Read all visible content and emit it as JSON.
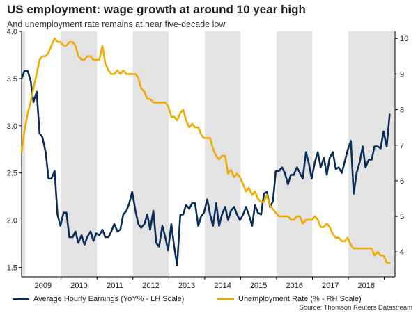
{
  "title": "US employment: wage growth at around 10 year high",
  "subtitle": "And unemployment rate remains at near five-decade low",
  "source": "Source: Thomson Reuters Datastream",
  "colors": {
    "earnings": "#0b2d5b",
    "unemployment": "#f2a900",
    "shade": "#e3e3e3",
    "axis": "#000000"
  },
  "legend": {
    "earnings": "Average Hourly Earnings (YoY% - LH Scale)",
    "unemployment": "Unemployment Rate (% - RH Scale)"
  },
  "chart_data": {
    "type": "line",
    "title": "US employment: wage growth at around 10 year high",
    "subtitle": "And unemployment rate remains at near five-decade low",
    "x_range": [
      2008.5,
      2018.9
    ],
    "year_labels": [
      "2009",
      "2010",
      "2011",
      "2012",
      "2013",
      "2014",
      "2015",
      "2016",
      "2017",
      "2018"
    ],
    "shaded_periods": [
      [
        2008.5,
        2008.6
      ],
      [
        2009.6,
        2010.6
      ],
      [
        2011.6,
        2012.6
      ],
      [
        2013.6,
        2014.6
      ],
      [
        2015.6,
        2016.6
      ],
      [
        2017.6,
        2018.9
      ]
    ],
    "y_left": {
      "min": 1.4,
      "max": 4.0,
      "ticks": [
        "1.5",
        "2.0",
        "2.5",
        "3.0",
        "3.5",
        "4.0"
      ],
      "label": ""
    },
    "y_right": {
      "min": 3.3,
      "max": 10.2,
      "ticks": [
        "4",
        "5",
        "6",
        "7",
        "8",
        "9",
        "10"
      ],
      "label": ""
    },
    "series": [
      {
        "name": "Average Hourly Earnings (YoY% - LH Scale)",
        "axis": "left",
        "color": "#0b2d5b",
        "points": [
          [
            2008.5,
            3.5
          ],
          [
            2008.58,
            3.58
          ],
          [
            2008.67,
            3.58
          ],
          [
            2008.75,
            3.48
          ],
          [
            2008.83,
            3.25
          ],
          [
            2008.92,
            3.36
          ],
          [
            2009.0,
            2.92
          ],
          [
            2009.08,
            2.88
          ],
          [
            2009.17,
            2.72
          ],
          [
            2009.25,
            2.44
          ],
          [
            2009.33,
            2.44
          ],
          [
            2009.42,
            2.52
          ],
          [
            2009.5,
            2.06
          ],
          [
            2009.58,
            1.94
          ],
          [
            2009.67,
            2.08
          ],
          [
            2009.75,
            2.08
          ],
          [
            2009.83,
            1.82
          ],
          [
            2009.92,
            1.82
          ],
          [
            2010.0,
            1.88
          ],
          [
            2010.08,
            1.76
          ],
          [
            2010.17,
            1.84
          ],
          [
            2010.25,
            1.74
          ],
          [
            2010.33,
            1.82
          ],
          [
            2010.42,
            1.88
          ],
          [
            2010.5,
            1.78
          ],
          [
            2010.58,
            1.86
          ],
          [
            2010.67,
            1.84
          ],
          [
            2010.75,
            1.9
          ],
          [
            2010.83,
            1.82
          ],
          [
            2010.92,
            1.82
          ],
          [
            2011.0,
            1.88
          ],
          [
            2011.08,
            1.96
          ],
          [
            2011.17,
            1.88
          ],
          [
            2011.25,
            1.9
          ],
          [
            2011.33,
            2.06
          ],
          [
            2011.42,
            2.1
          ],
          [
            2011.5,
            2.18
          ],
          [
            2011.58,
            2.3
          ],
          [
            2011.67,
            2.1
          ],
          [
            2011.75,
            1.96
          ],
          [
            2011.83,
            1.92
          ],
          [
            2011.92,
            1.96
          ],
          [
            2012.0,
            2.06
          ],
          [
            2012.08,
            1.9
          ],
          [
            2012.17,
            2.1
          ],
          [
            2012.25,
            1.76
          ],
          [
            2012.33,
            1.72
          ],
          [
            2012.42,
            1.94
          ],
          [
            2012.5,
            1.82
          ],
          [
            2012.58,
            1.68
          ],
          [
            2012.67,
            1.96
          ],
          [
            2012.75,
            1.72
          ],
          [
            2012.83,
            1.52
          ],
          [
            2012.92,
            2.06
          ],
          [
            2013.0,
            2.06
          ],
          [
            2013.08,
            2.16
          ],
          [
            2013.17,
            2.12
          ],
          [
            2013.25,
            2.18
          ],
          [
            2013.33,
            2.18
          ],
          [
            2013.42,
            1.94
          ],
          [
            2013.5,
            2.04
          ],
          [
            2013.58,
            2.08
          ],
          [
            2013.67,
            2.22
          ],
          [
            2013.75,
            2.06
          ],
          [
            2013.83,
            1.94
          ],
          [
            2013.92,
            2.18
          ],
          [
            2014.0,
            1.94
          ],
          [
            2014.08,
            2.06
          ],
          [
            2014.17,
            2.14
          ],
          [
            2014.25,
            2.0
          ],
          [
            2014.33,
            2.1
          ],
          [
            2014.42,
            2.14
          ],
          [
            2014.5,
            2.06
          ],
          [
            2014.58,
            2.0
          ],
          [
            2014.67,
            2.06
          ],
          [
            2014.75,
            2.14
          ],
          [
            2014.83,
            2.06
          ],
          [
            2014.92,
            1.94
          ],
          [
            2015.0,
            2.16
          ],
          [
            2015.08,
            2.08
          ],
          [
            2015.17,
            2.06
          ],
          [
            2015.25,
            2.28
          ],
          [
            2015.33,
            2.3
          ],
          [
            2015.42,
            2.14
          ],
          [
            2015.5,
            2.2
          ],
          [
            2015.58,
            2.52
          ],
          [
            2015.67,
            2.52
          ],
          [
            2015.75,
            2.56
          ],
          [
            2015.83,
            2.5
          ],
          [
            2015.92,
            2.38
          ],
          [
            2016.0,
            2.48
          ],
          [
            2016.08,
            2.48
          ],
          [
            2016.17,
            2.56
          ],
          [
            2016.25,
            2.5
          ],
          [
            2016.33,
            2.44
          ],
          [
            2016.42,
            2.72
          ],
          [
            2016.5,
            2.6
          ],
          [
            2016.58,
            2.44
          ],
          [
            2016.67,
            2.62
          ],
          [
            2016.75,
            2.72
          ],
          [
            2016.83,
            2.56
          ],
          [
            2016.92,
            2.66
          ],
          [
            2017.0,
            2.48
          ],
          [
            2017.08,
            2.66
          ],
          [
            2017.17,
            2.72
          ],
          [
            2017.25,
            2.54
          ],
          [
            2017.33,
            2.56
          ],
          [
            2017.42,
            2.5
          ],
          [
            2017.5,
            2.62
          ],
          [
            2017.58,
            2.74
          ],
          [
            2017.67,
            2.84
          ],
          [
            2017.75,
            2.28
          ],
          [
            2017.83,
            2.5
          ],
          [
            2017.92,
            2.62
          ],
          [
            2018.0,
            2.78
          ],
          [
            2018.08,
            2.56
          ],
          [
            2018.17,
            2.64
          ],
          [
            2018.25,
            2.64
          ],
          [
            2018.33,
            2.78
          ],
          [
            2018.42,
            2.78
          ],
          [
            2018.5,
            2.76
          ],
          [
            2018.58,
            2.94
          ],
          [
            2018.67,
            2.78
          ],
          [
            2018.75,
            3.12
          ]
        ]
      },
      {
        "name": "Unemployment Rate (% - RH Scale)",
        "axis": "right",
        "color": "#f2a900",
        "points": [
          [
            2008.5,
            6.8
          ],
          [
            2008.58,
            7.4
          ],
          [
            2008.67,
            7.9
          ],
          [
            2008.75,
            8.2
          ],
          [
            2008.83,
            8.6
          ],
          [
            2008.92,
            9.0
          ],
          [
            2009.0,
            9.4
          ],
          [
            2009.08,
            9.5
          ],
          [
            2009.17,
            9.5
          ],
          [
            2009.25,
            9.6
          ],
          [
            2009.33,
            9.8
          ],
          [
            2009.42,
            10.0
          ],
          [
            2009.5,
            9.9
          ],
          [
            2009.58,
            9.9
          ],
          [
            2009.67,
            9.8
          ],
          [
            2009.75,
            9.8
          ],
          [
            2009.83,
            9.9
          ],
          [
            2009.92,
            9.9
          ],
          [
            2010.0,
            9.8
          ],
          [
            2010.08,
            9.5
          ],
          [
            2010.17,
            9.4
          ],
          [
            2010.25,
            9.4
          ],
          [
            2010.33,
            9.5
          ],
          [
            2010.42,
            9.5
          ],
          [
            2010.5,
            9.4
          ],
          [
            2010.58,
            9.4
          ],
          [
            2010.67,
            9.4
          ],
          [
            2010.75,
            9.8
          ],
          [
            2010.83,
            9.3
          ],
          [
            2010.92,
            9.1
          ],
          [
            2011.0,
            9.0
          ],
          [
            2011.08,
            9.0
          ],
          [
            2011.17,
            9.1
          ],
          [
            2011.25,
            9.0
          ],
          [
            2011.33,
            9.1
          ],
          [
            2011.42,
            9.0
          ],
          [
            2011.5,
            9.0
          ],
          [
            2011.58,
            9.0
          ],
          [
            2011.67,
            9.0
          ],
          [
            2011.75,
            8.9
          ],
          [
            2011.83,
            8.6
          ],
          [
            2011.92,
            8.5
          ],
          [
            2012.0,
            8.3
          ],
          [
            2012.08,
            8.3
          ],
          [
            2012.17,
            8.2
          ],
          [
            2012.25,
            8.2
          ],
          [
            2012.33,
            8.2
          ],
          [
            2012.42,
            8.2
          ],
          [
            2012.5,
            8.2
          ],
          [
            2012.58,
            8.1
          ],
          [
            2012.67,
            7.8
          ],
          [
            2012.75,
            7.8
          ],
          [
            2012.83,
            7.7
          ],
          [
            2012.92,
            7.9
          ],
          [
            2013.0,
            8.0
          ],
          [
            2013.08,
            7.7
          ],
          [
            2013.17,
            7.5
          ],
          [
            2013.25,
            7.6
          ],
          [
            2013.33,
            7.5
          ],
          [
            2013.42,
            7.5
          ],
          [
            2013.5,
            7.3
          ],
          [
            2013.58,
            7.2
          ],
          [
            2013.67,
            7.2
          ],
          [
            2013.75,
            7.2
          ],
          [
            2013.83,
            6.9
          ],
          [
            2013.92,
            6.7
          ],
          [
            2014.0,
            6.6
          ],
          [
            2014.08,
            6.7
          ],
          [
            2014.17,
            6.7
          ],
          [
            2014.25,
            6.2
          ],
          [
            2014.33,
            6.3
          ],
          [
            2014.42,
            6.1
          ],
          [
            2014.5,
            6.2
          ],
          [
            2014.58,
            6.1
          ],
          [
            2014.67,
            5.9
          ],
          [
            2014.75,
            5.7
          ],
          [
            2014.83,
            5.8
          ],
          [
            2014.92,
            5.6
          ],
          [
            2015.0,
            5.7
          ],
          [
            2015.08,
            5.5
          ],
          [
            2015.17,
            5.4
          ],
          [
            2015.25,
            5.4
          ],
          [
            2015.33,
            5.6
          ],
          [
            2015.42,
            5.3
          ],
          [
            2015.5,
            5.2
          ],
          [
            2015.58,
            5.1
          ],
          [
            2015.67,
            5.0
          ],
          [
            2015.75,
            5.0
          ],
          [
            2015.83,
            5.0
          ],
          [
            2015.92,
            5.0
          ],
          [
            2016.0,
            4.9
          ],
          [
            2016.08,
            4.9
          ],
          [
            2016.17,
            5.0
          ],
          [
            2016.25,
            5.0
          ],
          [
            2016.33,
            4.8
          ],
          [
            2016.42,
            4.9
          ],
          [
            2016.5,
            4.9
          ],
          [
            2016.58,
            4.9
          ],
          [
            2016.67,
            5.0
          ],
          [
            2016.75,
            4.9
          ],
          [
            2016.83,
            4.7
          ],
          [
            2016.92,
            4.7
          ],
          [
            2017.0,
            4.8
          ],
          [
            2017.08,
            4.7
          ],
          [
            2017.17,
            4.5
          ],
          [
            2017.25,
            4.4
          ],
          [
            2017.33,
            4.4
          ],
          [
            2017.42,
            4.3
          ],
          [
            2017.5,
            4.3
          ],
          [
            2017.58,
            4.4
          ],
          [
            2017.67,
            4.2
          ],
          [
            2017.75,
            4.1
          ],
          [
            2017.83,
            4.1
          ],
          [
            2017.92,
            4.1
          ],
          [
            2018.0,
            4.1
          ],
          [
            2018.08,
            4.1
          ],
          [
            2018.17,
            4.1
          ],
          [
            2018.25,
            4.1
          ],
          [
            2018.33,
            3.9
          ],
          [
            2018.42,
            4.0
          ],
          [
            2018.5,
            3.9
          ],
          [
            2018.58,
            3.9
          ],
          [
            2018.67,
            3.7
          ],
          [
            2018.75,
            3.7
          ]
        ]
      }
    ]
  }
}
